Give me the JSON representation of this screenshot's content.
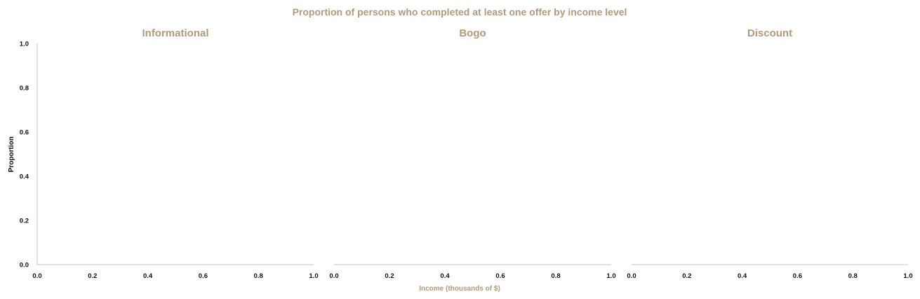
{
  "figure": {
    "suptitle": "Proportion of persons who completed at least one offer by income level",
    "xlabel": "Income (thousands of $)",
    "ylabel": "Proportion",
    "title_color": "#b19a7a",
    "axis_color": "#cfcfcf",
    "tick_color": "#111111"
  },
  "chart_data": [
    {
      "type": "bar",
      "title": "Informational",
      "xlabel": "",
      "ylabel": "Proportion",
      "xlim": [
        0.0,
        1.0
      ],
      "ylim": [
        0.0,
        1.0
      ],
      "xticks": [
        "0.0",
        "0.2",
        "0.4",
        "0.6",
        "0.8",
        "1.0"
      ],
      "yticks": [
        "0.0",
        "0.2",
        "0.4",
        "0.6",
        "0.8",
        "1.0"
      ],
      "categories": [],
      "values": [],
      "grid": false
    },
    {
      "type": "bar",
      "title": "Bogo",
      "xlabel": "Income (thousands of $)",
      "ylabel": "",
      "xlim": [
        0.0,
        1.0
      ],
      "ylim": [
        0.0,
        1.0
      ],
      "xticks": [
        "0.0",
        "0.2",
        "0.4",
        "0.6",
        "0.8",
        "1.0"
      ],
      "yticks": [],
      "categories": [],
      "values": [],
      "grid": false
    },
    {
      "type": "bar",
      "title": "Discount",
      "xlabel": "",
      "ylabel": "",
      "xlim": [
        0.0,
        1.0
      ],
      "ylim": [
        0.0,
        1.0
      ],
      "xticks": [
        "0.0",
        "0.2",
        "0.4",
        "0.6",
        "0.8",
        "1.0"
      ],
      "yticks": [],
      "categories": [],
      "values": [],
      "grid": false
    }
  ]
}
